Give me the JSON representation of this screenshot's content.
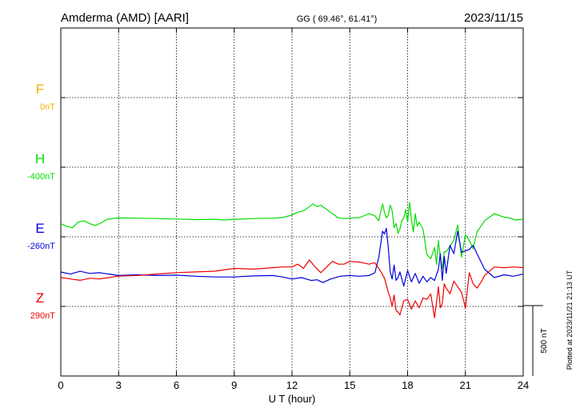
{
  "header": {
    "station": "Amderma (AMD)  [AARI]",
    "coords": "GG ( 69.46°,  61.41°)",
    "date": "2023/11/15"
  },
  "side_note": "Plotted at 2023/11/21 21:13 UT",
  "scale_label": "500 nT",
  "chart_data": {
    "type": "line",
    "xlabel": "U T (hour)",
    "xlim": [
      0,
      24
    ],
    "xticks": [
      "0",
      "3",
      "6",
      "9",
      "12",
      "15",
      "18",
      "21",
      "24"
    ],
    "y_units": "nT",
    "scale_bar_nT": 500,
    "grid": true,
    "series": [
      {
        "name": "F",
        "baseline_label": "0nT",
        "color": "#f0b000",
        "row": 1,
        "x": [],
        "y": []
      },
      {
        "name": "H",
        "baseline_label": "-400nT",
        "color": "#00dd00",
        "row": 2,
        "x": [
          0,
          0.3,
          0.6,
          0.9,
          1.2,
          1.5,
          1.8,
          2.1,
          2.4,
          2.7,
          3,
          4,
          5,
          6,
          7,
          8,
          8.5,
          9,
          10,
          11,
          11.5,
          12,
          12.3,
          12.6,
          12.9,
          13.1,
          13.3,
          13.5,
          13.8,
          14.1,
          14.4,
          14.7,
          15,
          15.5,
          16,
          16.3,
          16.5,
          16.7,
          16.8,
          16.9,
          17,
          17.1,
          17.2,
          17.3,
          17.4,
          17.5,
          17.6,
          17.7,
          17.8,
          17.9,
          18,
          18.1,
          18.2,
          18.3,
          18.4,
          18.5,
          18.6,
          18.8,
          19,
          19.2,
          19.4,
          19.5,
          19.6,
          19.7,
          19.8,
          19.9,
          20,
          20.2,
          20.4,
          20.6,
          20.8,
          21,
          21.2,
          21.4,
          21.6,
          21.8,
          22,
          22.2,
          22.5,
          23,
          23.3,
          23.6,
          24
        ],
        "y": [
          -400,
          -420,
          -430,
          -390,
          -380,
          -400,
          -415,
          -395,
          -370,
          -365,
          -360,
          -362,
          -365,
          -368,
          -372,
          -370,
          -375,
          -370,
          -365,
          -362,
          -358,
          -340,
          -320,
          -310,
          -280,
          -260,
          -280,
          -270,
          -300,
          -330,
          -360,
          -365,
          -362,
          -358,
          -330,
          -345,
          -380,
          -260,
          -320,
          -360,
          -340,
          -270,
          -310,
          -430,
          -400,
          -470,
          -440,
          -380,
          -360,
          -300,
          -390,
          -250,
          -370,
          -460,
          -330,
          -420,
          -390,
          -440,
          -620,
          -650,
          -570,
          -690,
          -520,
          -640,
          -720,
          -600,
          -600,
          -560,
          -520,
          -410,
          -640,
          -480,
          -520,
          -580,
          -460,
          -420,
          -380,
          -360,
          -330,
          -355,
          -360,
          -375,
          -370
        ]
      },
      {
        "name": "E",
        "baseline_label": "-260nT",
        "color": "#0000dd",
        "row": 3,
        "x": [
          0,
          0.5,
          1,
          1.5,
          2,
          2.5,
          3,
          4,
          5,
          6,
          7,
          8,
          9,
          10,
          11,
          11.5,
          12,
          12.5,
          13,
          13.3,
          13.6,
          14,
          14.5,
          15,
          15.5,
          16,
          16.3,
          16.5,
          16.7,
          16.8,
          16.9,
          17,
          17.1,
          17.2,
          17.3,
          17.4,
          17.5,
          17.6,
          17.8,
          18,
          18.2,
          18.4,
          18.6,
          18.8,
          19,
          19.2,
          19.4,
          19.6,
          19.7,
          19.8,
          19.9,
          20,
          20.2,
          20.4,
          20.6,
          20.8,
          21,
          21.2,
          21.4,
          21.6,
          22,
          22.5,
          23,
          23.5,
          24
        ],
        "y": [
          -250,
          -265,
          -245,
          -260,
          -255,
          -265,
          -275,
          -270,
          -275,
          -272,
          -280,
          -285,
          -285,
          -278,
          -275,
          -285,
          -300,
          -290,
          -310,
          -305,
          -325,
          -300,
          -280,
          -275,
          -280,
          -275,
          -255,
          -150,
          40,
          20,
          60,
          -80,
          -250,
          -300,
          -200,
          -310,
          -290,
          -250,
          -350,
          -240,
          -320,
          -260,
          -330,
          -280,
          -320,
          -290,
          -310,
          -230,
          -120,
          -310,
          -140,
          -260,
          -60,
          -120,
          40,
          -110,
          -100,
          -90,
          -60,
          -120,
          -230,
          -290,
          -270,
          -280,
          -265
        ]
      },
      {
        "name": "Z",
        "baseline_label": "290nT",
        "color": "#ee0000",
        "row": 4,
        "x": [
          0,
          0.5,
          1,
          1.5,
          2,
          2.5,
          3,
          4,
          5,
          6,
          7,
          8,
          9,
          10,
          11,
          11.5,
          12,
          12.3,
          12.6,
          12.9,
          13.2,
          13.5,
          13.8,
          14.1,
          14.4,
          14.7,
          15,
          15.5,
          16,
          16.3,
          16.6,
          16.8,
          17,
          17.1,
          17.2,
          17.3,
          17.4,
          17.5,
          17.6,
          17.8,
          18,
          18.2,
          18.4,
          18.6,
          18.8,
          19,
          19.2,
          19.4,
          19.6,
          19.7,
          19.8,
          19.9,
          20,
          20.2,
          20.4,
          20.6,
          20.8,
          21,
          21.2,
          21.4,
          21.6,
          21.8,
          22,
          22.5,
          23,
          23.5,
          24
        ],
        "y": [
          205,
          195,
          185,
          200,
          195,
          205,
          215,
          220,
          230,
          240,
          245,
          250,
          270,
          265,
          275,
          280,
          280,
          300,
          270,
          330,
          280,
          240,
          280,
          320,
          300,
          300,
          320,
          315,
          300,
          310,
          250,
          200,
          100,
          60,
          0,
          80,
          -30,
          -40,
          -60,
          40,
          50,
          -20,
          40,
          -10,
          60,
          50,
          90,
          -80,
          140,
          -10,
          20,
          160,
          130,
          90,
          180,
          140,
          100,
          -10,
          240,
          160,
          130,
          170,
          220,
          280,
          275,
          280,
          275
        ]
      }
    ]
  }
}
